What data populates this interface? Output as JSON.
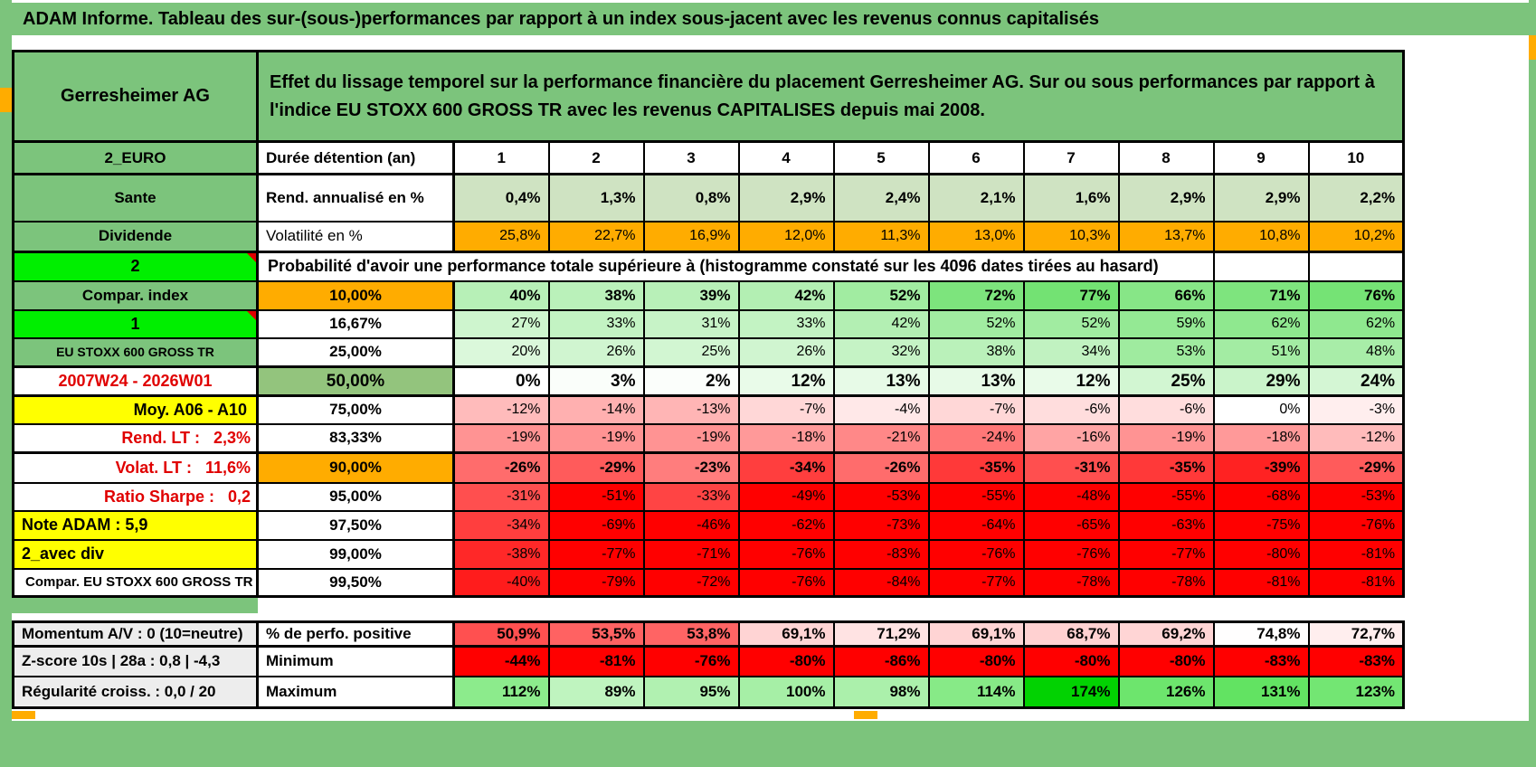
{
  "banner": {
    "text": "ADAM Informe. Tableau des sur-(sous-)performances par rapport à un index sous-jacent avec les revenus connus capitalisés"
  },
  "header": {
    "security": "Gerresheimer AG",
    "description": "Effet du lissage temporel sur la performance financière du placement Gerresheimer AG. Sur ou sous performances par rapport à l'indice EU STOXX 600 GROSS TR avec les revenus CAPITALISES depuis mai 2008."
  },
  "colors": {
    "green_header": "#7cc47c",
    "bright_green": "#00ef00",
    "orange": "#ffac00",
    "yellow": "#ffff00",
    "mid_green": "#93c47d",
    "light_green_cells": "#cfe3c2",
    "red_text": "#e00000",
    "full_red": "#ff0000",
    "gray_label": "#ededed"
  },
  "main_rows": [
    {
      "left": "2_EURO",
      "left_style": "green",
      "head": "Durée détention (an)",
      "head_style": "hl",
      "cells": [
        "1",
        "2",
        "3",
        "4",
        "5",
        "6",
        "7",
        "8",
        "9",
        "10"
      ],
      "scale": "none",
      "value_style": "c b17",
      "tr": "bt3 bb3"
    },
    {
      "left": "Sante",
      "left_style": "green",
      "head": "Rend. annualisé en %",
      "head_style": "hl",
      "cells": [
        "0,4%",
        "1,3%",
        "0,8%",
        "2,9%",
        "2,4%",
        "2,1%",
        "1,6%",
        "2,9%",
        "2,9%",
        "2,2%"
      ],
      "scale": "fixedgreen",
      "value_style": "r b17"
    },
    {
      "left": "Dividende",
      "left_style": "green",
      "head": "Volatilité en %",
      "head_style": "hn",
      "cells": [
        "25,8%",
        "22,7%",
        "16,9%",
        "12,0%",
        "11,3%",
        "13,0%",
        "10,3%",
        "13,7%",
        "10,8%",
        "10,2%"
      ],
      "scale": "fixedorange",
      "value_style": "r n16"
    },
    {
      "left": "2",
      "left_style": "bright",
      "note": "Probabilité d'avoir une performance totale supérieure à (histogramme constaté sur les 4096 dates tirées au hasard)",
      "tr": "bt3"
    },
    {
      "left": "Compar. index",
      "left_style": "green",
      "head": "10,00%",
      "head_style": "orange",
      "cells": [
        "40%",
        "38%",
        "39%",
        "42%",
        "52%",
        "72%",
        "77%",
        "66%",
        "71%",
        "76%"
      ],
      "scale": "prob",
      "value_style": "r b17"
    },
    {
      "left": "1",
      "left_style": "bright",
      "head": "16,67%",
      "head_style": "white",
      "cells": [
        "27%",
        "33%",
        "31%",
        "33%",
        "42%",
        "52%",
        "52%",
        "59%",
        "62%",
        "62%"
      ],
      "scale": "prob",
      "value_style": "r n16"
    },
    {
      "left": "EU STOXX 600 GROSS TR",
      "left_style": "green-sm",
      "head": "25,00%",
      "head_style": "white",
      "cells": [
        "20%",
        "26%",
        "25%",
        "26%",
        "32%",
        "38%",
        "34%",
        "53%",
        "51%",
        "48%"
      ],
      "scale": "prob",
      "value_style": "r n16"
    },
    {
      "left": "2007W24 - 2026W01",
      "left_style": "date",
      "head": "50,00%",
      "head_style": "green",
      "cells": [
        "0%",
        "3%",
        "2%",
        "12%",
        "13%",
        "13%",
        "12%",
        "25%",
        "29%",
        "24%"
      ],
      "scale": "prob",
      "value_style": "r b19",
      "tr": "bt3 bb3"
    },
    {
      "left": "Moy. A06 - A10",
      "left_style": "yellow-r",
      "head": "75,00%",
      "head_style": "white",
      "cells": [
        "-12%",
        "-14%",
        "-13%",
        "-7%",
        "-4%",
        "-7%",
        "-6%",
        "-6%",
        "0%",
        "-3%"
      ],
      "scale": "prob",
      "value_style": "r n16"
    },
    {
      "left": "Rend. LT :   2,3%",
      "left_style": "red-r",
      "head": "83,33%",
      "head_style": "white",
      "cells": [
        "-19%",
        "-19%",
        "-19%",
        "-18%",
        "-21%",
        "-24%",
        "-16%",
        "-19%",
        "-18%",
        "-12%"
      ],
      "scale": "prob",
      "value_style": "r n16"
    },
    {
      "left": "Volat. LT :   11,6%",
      "left_style": "red-r",
      "head": "90,00%",
      "head_style": "orange",
      "cells": [
        "-26%",
        "-29%",
        "-23%",
        "-34%",
        "-26%",
        "-35%",
        "-31%",
        "-35%",
        "-39%",
        "-29%"
      ],
      "scale": "prob",
      "value_style": "r b17",
      "tr": "bt3"
    },
    {
      "left": "Ratio Sharpe :   0,2",
      "left_style": "red-r",
      "head": "95,00%",
      "head_style": "white",
      "cells": [
        "-31%",
        "-51%",
        "-33%",
        "-49%",
        "-53%",
        "-55%",
        "-48%",
        "-55%",
        "-68%",
        "-53%"
      ],
      "scale": "prob",
      "value_style": "r n16"
    },
    {
      "left": "Note ADAM : 5,9",
      "left_style": "yellow-l",
      "head": "97,50%",
      "head_style": "white",
      "cells": [
        "-34%",
        "-69%",
        "-46%",
        "-62%",
        "-73%",
        "-64%",
        "-65%",
        "-63%",
        "-75%",
        "-76%"
      ],
      "scale": "prob",
      "value_style": "r n16"
    },
    {
      "left": "2_avec div",
      "left_style": "yellow-l",
      "head": "99,00%",
      "head_style": "white",
      "cells": [
        "-38%",
        "-77%",
        "-71%",
        "-76%",
        "-83%",
        "-76%",
        "-76%",
        "-77%",
        "-80%",
        "-81%"
      ],
      "scale": "prob",
      "value_style": "r n16"
    },
    {
      "left": "Compar. EU STOXX 600 GROSS TR",
      "left_style": "white-b",
      "head": "99,50%",
      "head_style": "white",
      "cells": [
        "-40%",
        "-79%",
        "-72%",
        "-76%",
        "-84%",
        "-77%",
        "-78%",
        "-78%",
        "-81%",
        "-81%"
      ],
      "scale": "prob",
      "value_style": "r n16"
    }
  ],
  "summary_rows": [
    {
      "left": "Momentum A/V : 0 (10=neutre)",
      "left_style": "gray",
      "head": "% de perfo. positive",
      "head_style": "hl",
      "cells": [
        "50,9%",
        "53,5%",
        "53,8%",
        "69,1%",
        "71,2%",
        "69,1%",
        "68,7%",
        "69,2%",
        "74,8%",
        "72,7%"
      ],
      "scale": "perfo",
      "value_style": "r b17",
      "tr": "bb3"
    },
    {
      "left": "Z-score 10s | 28a : 0,8 | -4,3",
      "left_style": "gray",
      "head": "Minimum",
      "head_style": "hl",
      "cells": [
        "-44%",
        "-81%",
        "-76%",
        "-80%",
        "-86%",
        "-80%",
        "-80%",
        "-80%",
        "-83%",
        "-83%"
      ],
      "scale": "min",
      "value_style": "r b17"
    },
    {
      "left": "Régularité croiss. : 0,0 / 20",
      "left_style": "gray",
      "head": "Maximum",
      "head_style": "hl",
      "cells": [
        "112%",
        "89%",
        "95%",
        "100%",
        "98%",
        "114%",
        "174%",
        "126%",
        "131%",
        "123%"
      ],
      "scale": "max",
      "value_style": "r b17"
    }
  ]
}
